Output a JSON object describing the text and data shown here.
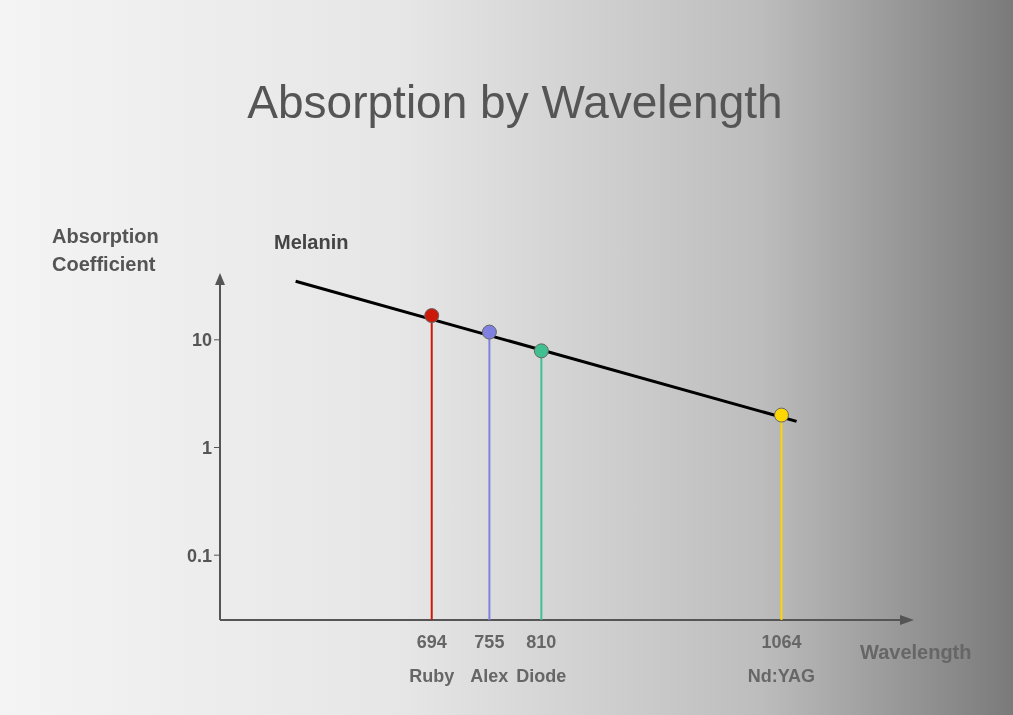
{
  "chart_data": {
    "type": "line",
    "title": "Absorption by Wavelength",
    "xlabel": "Wavelength",
    "ylabel": "Absorption Coefficient",
    "log": "y",
    "xlim": [
      470,
      1200
    ],
    "ylim": [
      0.025,
      40
    ],
    "yticks": [
      0.1,
      1,
      10
    ],
    "xticks": [
      {
        "value": 694,
        "label": "694\nRuby"
      },
      {
        "value": 755,
        "label": "755\nAlex"
      },
      {
        "value": 810,
        "label": "810\nDiode"
      },
      {
        "value": 1064,
        "label": "1064\nNd:YAG"
      }
    ],
    "grid": false,
    "legend": false,
    "series": [
      {
        "name": "Melanin",
        "color": "#000000",
        "marker": "none",
        "x": [
          550,
          1080
        ],
        "values": [
          35,
          1.75
        ]
      },
      {
        "type": "lollipop",
        "marker": "circle",
        "x": [
          694,
          755,
          810,
          1064
        ],
        "values": [
          16.8,
          11.8,
          7.9,
          2.0
        ],
        "colors": [
          "#cc1a0a",
          "#8080e0",
          "#40c090",
          "#ffd700"
        ]
      }
    ]
  }
}
